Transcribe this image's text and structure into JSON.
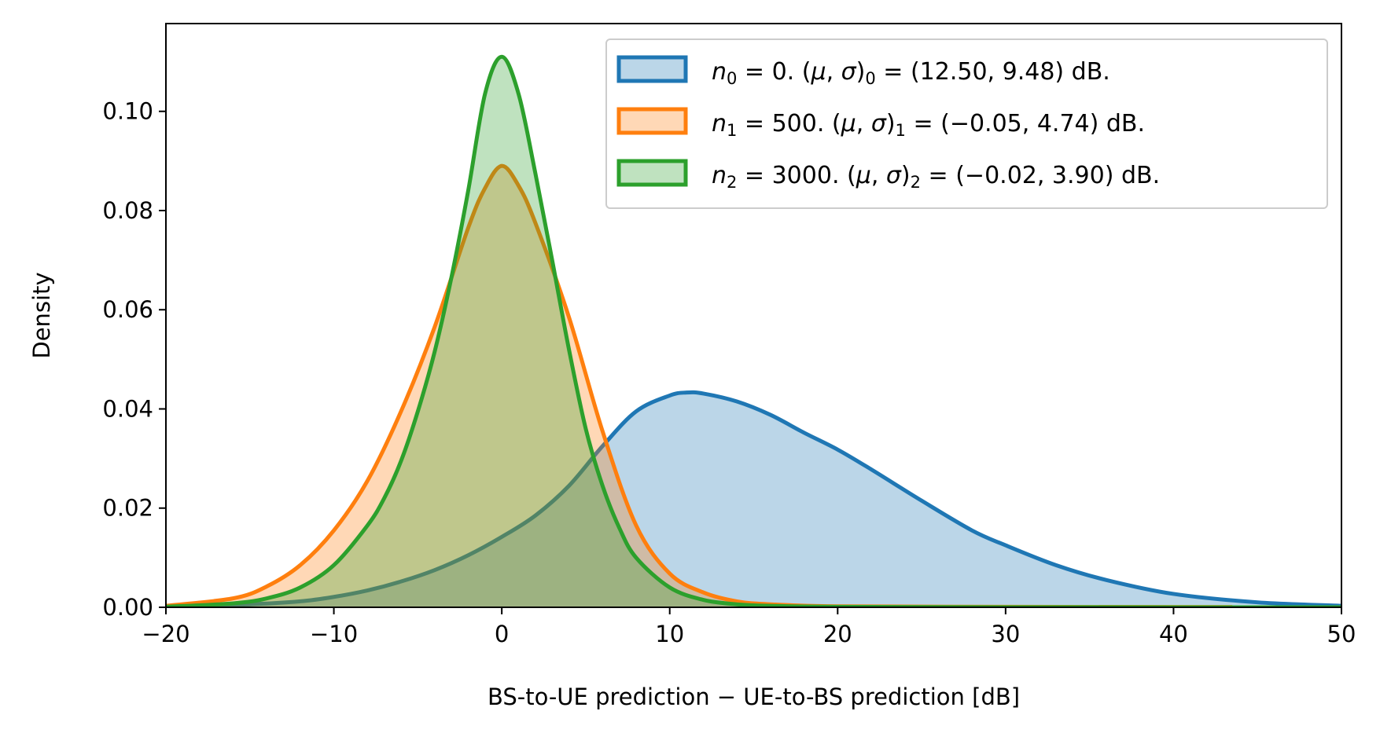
{
  "chart_data": {
    "type": "area",
    "title": "",
    "xlabel": "BS-to-UE prediction − UE-to-BS prediction [dB]",
    "ylabel": "Density",
    "xlim": [
      -20,
      50
    ],
    "ylim": [
      0,
      0.1177
    ],
    "xticks": [
      -20,
      -10,
      0,
      10,
      20,
      30,
      40,
      50
    ],
    "xtick_labels": [
      "−20",
      "−10",
      "0",
      "10",
      "20",
      "30",
      "40",
      "50"
    ],
    "yticks": [
      0,
      0.02,
      0.04,
      0.06,
      0.08,
      0.1
    ],
    "ytick_labels": [
      "0.00",
      "0.02",
      "0.04",
      "0.06",
      "0.08",
      "0.10"
    ],
    "grid": false,
    "legend_position": "top-right",
    "series": [
      {
        "name": "n0 = 0. (μ, σ)0 = (12.50, 9.48) dB.",
        "color": "#1f77b4",
        "fill": "#1f77b4",
        "x": [
          -20,
          -15,
          -12,
          -10,
          -8,
          -6,
          -4,
          -2,
          0,
          2,
          4,
          6,
          8,
          10,
          11,
          12,
          14,
          16,
          18,
          20,
          22,
          25,
          28,
          30,
          33,
          36,
          40,
          45,
          50
        ],
        "y": [
          0.0002,
          0.0006,
          0.0012,
          0.0021,
          0.0034,
          0.0052,
          0.0075,
          0.0105,
          0.0142,
          0.0185,
          0.0245,
          0.0325,
          0.0395,
          0.0427,
          0.0433,
          0.0431,
          0.0415,
          0.0388,
          0.0352,
          0.0318,
          0.0278,
          0.0215,
          0.0155,
          0.0125,
          0.0085,
          0.0055,
          0.0027,
          0.001,
          0.0003
        ]
      },
      {
        "name": "n1 = 500. (μ, σ)1 = (−0.05, 4.74) dB.",
        "color": "#ff7f0e",
        "fill": "#ff7f0e",
        "x": [
          -20,
          -16,
          -14,
          -12,
          -10,
          -8,
          -6,
          -4,
          -2,
          -1,
          0,
          1,
          2,
          4,
          6,
          8,
          10,
          12,
          14,
          16,
          20,
          30,
          40,
          43.5
        ],
        "y": [
          0.0003,
          0.0018,
          0.0042,
          0.0085,
          0.0155,
          0.0255,
          0.0395,
          0.0565,
          0.0765,
          0.0845,
          0.089,
          0.085,
          0.0775,
          0.0585,
          0.0355,
          0.0165,
          0.0068,
          0.003,
          0.0012,
          0.0006,
          0.0002,
          0.0001,
          5e-05,
          5e-05
        ]
      },
      {
        "name": "n2 = 3000. (μ, σ)2 = (−0.02, 3.90) dB.",
        "color": "#2ca02c",
        "fill": "#2ca02c",
        "x": [
          -20,
          -16,
          -14,
          -12,
          -10,
          -8,
          -7,
          -6,
          -5,
          -4,
          -3,
          -2,
          -1,
          0,
          1,
          2,
          3,
          4,
          5,
          6,
          7,
          8,
          10,
          12,
          14,
          16,
          20,
          30,
          40,
          50
        ],
        "y": [
          0.0001,
          0.0008,
          0.0018,
          0.004,
          0.0085,
          0.0165,
          0.022,
          0.0295,
          0.0395,
          0.0515,
          0.0665,
          0.084,
          0.1035,
          0.111,
          0.1035,
          0.0875,
          0.07,
          0.052,
          0.036,
          0.0245,
          0.016,
          0.01,
          0.004,
          0.0015,
          0.0006,
          0.0003,
          0.0001,
          2e-05,
          1e-05,
          0.0
        ]
      }
    ]
  },
  "legend": [
    {
      "var": "n",
      "sub": "0",
      "eq": " = 0. (",
      "mu": "μ",
      "comma": ", ",
      "sigma": "σ",
      "close": ")",
      "sub2": "0",
      "eq2": " = (12.50, 9.48) dB."
    },
    {
      "var": "n",
      "sub": "1",
      "eq": " = 500. (",
      "mu": "μ",
      "comma": ", ",
      "sigma": "σ",
      "close": ")",
      "sub2": "1",
      "eq2": " = (−0.05, 4.74) dB."
    },
    {
      "var": "n",
      "sub": "2",
      "eq": " = 3000. (",
      "mu": "μ",
      "comma": ", ",
      "sigma": "σ",
      "close": ")",
      "sub2": "2",
      "eq2": " = (−0.02, 3.90) dB."
    }
  ]
}
